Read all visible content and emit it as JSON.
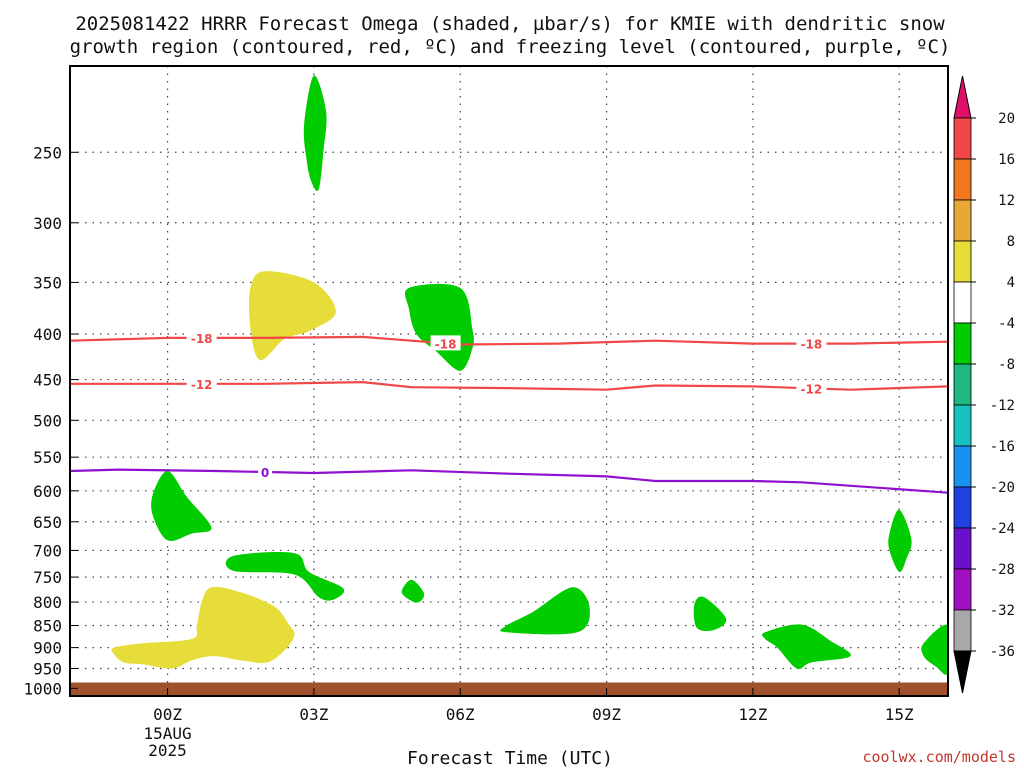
{
  "chart_data": {
    "type": "heatmap",
    "title_line1": "2025081422 HRRR Forecast Omega (shaded, µbar/s) for KMIE with dendritic snow",
    "title_line2": "growth region (contoured, red, ºC) and freezing level (contoured, purple, ºC)",
    "xlabel": "Forecast Time (UTC)",
    "credit": "coolwx.com/models",
    "x_axis": {
      "range_hours": [
        -2,
        16
      ],
      "ticks": [
        {
          "hour": 0,
          "label": "00Z",
          "date_line1": "15AUG",
          "date_line2": "2025"
        },
        {
          "hour": 3,
          "label": "03Z"
        },
        {
          "hour": 6,
          "label": "06Z"
        },
        {
          "hour": 9,
          "label": "09Z"
        },
        {
          "hour": 12,
          "label": "12Z"
        },
        {
          "hour": 15,
          "label": "15Z"
        }
      ]
    },
    "y_axis": {
      "scale": "log-pressure",
      "range_hpa": [
        200,
        1020
      ],
      "ticks": [
        250,
        300,
        350,
        400,
        450,
        500,
        550,
        600,
        650,
        700,
        750,
        800,
        850,
        900,
        950,
        1000
      ],
      "grid": true
    },
    "ground_hpa": 985,
    "ground_color": "#a0522d",
    "colorbar": {
      "labels": [
        "20",
        "16",
        "12",
        "8",
        "4",
        "-4",
        "-8",
        "-12",
        "-16",
        "-20",
        "-24",
        "-28",
        "-32",
        "-36"
      ],
      "bins": [
        {
          "from": 16,
          "to": 20,
          "color": "#f04848"
        },
        {
          "from": 12,
          "to": 16,
          "color": "#f07820"
        },
        {
          "from": 8,
          "to": 12,
          "color": "#e8a838"
        },
        {
          "from": 4,
          "to": 8,
          "color": "#e6dc3a"
        },
        {
          "from": -4,
          "to": 4,
          "color": "#ffffff"
        },
        {
          "from": -8,
          "to": -4,
          "color": "#00cc00"
        },
        {
          "from": -12,
          "to": -8,
          "color": "#20b880"
        },
        {
          "from": -16,
          "to": -12,
          "color": "#18c0c0"
        },
        {
          "from": -20,
          "to": -16,
          "color": "#1a90f0"
        },
        {
          "from": -24,
          "to": -20,
          "color": "#2040e0"
        },
        {
          "from": -28,
          "to": -24,
          "color": "#6a10c8"
        },
        {
          "from": -32,
          "to": -28,
          "color": "#a010c0"
        },
        {
          "from": -36,
          "to": -32,
          "color": "#a8a8a8"
        }
      ],
      "top_arrow_color": "#e0106a",
      "bottom_arrow_color": "#000000"
    },
    "contours": [
      {
        "name": "-18",
        "color": "#f04848",
        "points": [
          [
            -2,
            407
          ],
          [
            0,
            404
          ],
          [
            2,
            404
          ],
          [
            4,
            403
          ],
          [
            6,
            411
          ],
          [
            8,
            410
          ],
          [
            10,
            407
          ],
          [
            12,
            410
          ],
          [
            14,
            410
          ],
          [
            16,
            408
          ]
        ],
        "labels": [
          {
            "hour": 0.7,
            "text": "-18"
          },
          {
            "hour": 5.7,
            "text": "-18"
          },
          {
            "hour": 13.2,
            "text": "-18"
          }
        ]
      },
      {
        "name": "-12",
        "color": "#f04848",
        "points": [
          [
            -2,
            455
          ],
          [
            0,
            455
          ],
          [
            2,
            455
          ],
          [
            4,
            453
          ],
          [
            5,
            459
          ],
          [
            7,
            460
          ],
          [
            9,
            462
          ],
          [
            10,
            457
          ],
          [
            12,
            458
          ],
          [
            14,
            462
          ],
          [
            16,
            458
          ]
        ],
        "labels": [
          {
            "hour": 0.7,
            "text": "-12"
          },
          {
            "hour": 13.2,
            "text": "-12"
          }
        ]
      },
      {
        "name": "0",
        "color": "#9010d0",
        "points": [
          [
            -2,
            570
          ],
          [
            -1,
            568
          ],
          [
            1,
            570
          ],
          [
            3,
            573
          ],
          [
            5,
            569
          ],
          [
            7,
            574
          ],
          [
            9,
            578
          ],
          [
            10,
            585
          ],
          [
            12,
            585
          ],
          [
            13,
            587
          ],
          [
            16,
            603
          ]
        ],
        "labels": [
          {
            "hour": 2,
            "text": "0"
          }
        ]
      }
    ],
    "shaded_regions": [
      {
        "value_bin": "-8 to -4",
        "color": "#00cc00",
        "outline": [
          [
            2.8,
            233
          ],
          [
            3.0,
            205
          ],
          [
            3.25,
            225
          ],
          [
            3.2,
            248
          ],
          [
            3.1,
            275
          ],
          [
            2.95,
            270
          ],
          [
            2.85,
            255
          ]
        ]
      },
      {
        "value_bin": "4 to 8",
        "color": "#e6dc3a",
        "outline": [
          [
            1.7,
            355
          ],
          [
            2.0,
            340
          ],
          [
            3.0,
            350
          ],
          [
            3.45,
            378
          ],
          [
            2.9,
            397
          ],
          [
            2.4,
            405
          ],
          [
            1.9,
            428
          ],
          [
            1.7,
            395
          ]
        ]
      },
      {
        "value_bin": "-8 to -4",
        "color": "#00cc00",
        "outline": [
          [
            4.95,
            355
          ],
          [
            6.0,
            355
          ],
          [
            6.25,
            395
          ],
          [
            6.25,
            415
          ],
          [
            6.0,
            440
          ],
          [
            5.5,
            418
          ],
          [
            5.1,
            400
          ],
          [
            4.95,
            375
          ]
        ]
      },
      {
        "value_bin": "-8 to -4",
        "color": "#00cc00",
        "outline": [
          [
            -0.3,
            605
          ],
          [
            0,
            570
          ],
          [
            0.4,
            610
          ],
          [
            0.9,
            660
          ],
          [
            0.5,
            670
          ],
          [
            0,
            682
          ],
          [
            -0.3,
            640
          ]
        ]
      },
      {
        "value_bin": "-8 to -4",
        "color": "#00cc00",
        "outline": [
          [
            1.35,
            710
          ],
          [
            2.6,
            705
          ],
          [
            2.9,
            740
          ],
          [
            3.6,
            772
          ],
          [
            3.4,
            795
          ],
          [
            3.1,
            790
          ],
          [
            2.6,
            745
          ],
          [
            1.35,
            738
          ]
        ]
      },
      {
        "value_bin": "-8 to -4",
        "color": "#00cc00",
        "outline": [
          [
            4.8,
            780
          ],
          [
            5.0,
            755
          ],
          [
            5.25,
            780
          ],
          [
            5.2,
            797
          ],
          [
            5.05,
            800
          ]
        ]
      },
      {
        "value_bin": "-8 to -4",
        "color": "#00cc00",
        "outline": [
          [
            6.95,
            850
          ],
          [
            7.5,
            820
          ],
          [
            8.3,
            770
          ],
          [
            8.65,
            810
          ],
          [
            8.4,
            865
          ],
          [
            6.95,
            865
          ]
        ]
      },
      {
        "value_bin": "-8 to -4",
        "color": "#00cc00",
        "outline": [
          [
            10.8,
            805
          ],
          [
            11.0,
            790
          ],
          [
            11.45,
            835
          ],
          [
            11.2,
            860
          ],
          [
            10.85,
            855
          ]
        ]
      },
      {
        "value_bin": "-8 to -4",
        "color": "#00cc00",
        "outline": [
          [
            12.25,
            865
          ],
          [
            13.0,
            848
          ],
          [
            13.6,
            885
          ],
          [
            14.0,
            920
          ],
          [
            13.2,
            935
          ],
          [
            12.9,
            950
          ],
          [
            12.5,
            900
          ],
          [
            12.25,
            880
          ]
        ]
      },
      {
        "value_bin": "-8 to -4",
        "color": "#00cc00",
        "outline": [
          [
            14.8,
            670
          ],
          [
            15.0,
            630
          ],
          [
            15.25,
            680
          ],
          [
            15.15,
            715
          ],
          [
            15.0,
            740
          ],
          [
            14.8,
            700
          ]
        ]
      },
      {
        "value_bin": "-8 to -4",
        "color": "#00cc00",
        "outline": [
          [
            15.5,
            890
          ],
          [
            16.0,
            850
          ],
          [
            16.0,
            960
          ],
          [
            15.75,
            945
          ],
          [
            15.5,
            920
          ]
        ]
      },
      {
        "value_bin": "4 to 8",
        "color": "#e6dc3a",
        "outline": [
          [
            -1.1,
            900
          ],
          [
            -0.5,
            890
          ],
          [
            0.5,
            880
          ],
          [
            0.6,
            850
          ],
          [
            0.7,
            800
          ],
          [
            0.9,
            770
          ],
          [
            1.5,
            780
          ],
          [
            2.2,
            810
          ],
          [
            2.5,
            850
          ],
          [
            2.6,
            870
          ],
          [
            2.45,
            900
          ],
          [
            2.05,
            935
          ],
          [
            1.5,
            930
          ],
          [
            0.95,
            920
          ],
          [
            0.5,
            930
          ],
          [
            0.1,
            950
          ],
          [
            -0.5,
            940
          ],
          [
            -0.9,
            935
          ],
          [
            -1.1,
            915
          ]
        ]
      }
    ]
  }
}
